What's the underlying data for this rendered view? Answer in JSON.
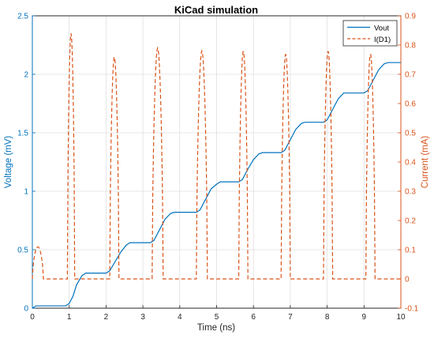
{
  "chart_data": {
    "type": "line",
    "title": "KiCad simulation",
    "xlabel": "Time (ns)",
    "ylabel_left": "Voltage (mV)",
    "ylabel_right": "Current (mA)",
    "xlim": [
      0,
      10
    ],
    "ylim_left": [
      0,
      2.5
    ],
    "ylim_right": [
      -0.1,
      0.9
    ],
    "xticks": [
      "0",
      "1",
      "2",
      "3",
      "4",
      "5",
      "6",
      "7",
      "8",
      "9",
      "10"
    ],
    "yticks_left": [
      "0",
      "0.5",
      "1",
      "1.5",
      "2",
      "2.5"
    ],
    "yticks_right": [
      "-0.1",
      "0",
      "0.1",
      "0.2",
      "0.3",
      "0.4",
      "0.5",
      "0.6",
      "0.7",
      "0.8",
      "0.9"
    ],
    "grid": true,
    "legend_position": "top-right",
    "colors": {
      "vout": "#0072BD",
      "id1": "#D95319"
    },
    "series": [
      {
        "name": "Vout",
        "axis": "left",
        "style": "solid",
        "x": [
          0,
          0.1,
          0.9,
          1.0,
          1.1,
          1.2,
          1.35,
          1.45,
          1.6,
          2.0,
          2.1,
          2.25,
          2.4,
          2.55,
          2.65,
          2.8,
          3.2,
          3.3,
          3.45,
          3.6,
          3.75,
          3.85,
          4.0,
          4.45,
          4.55,
          4.7,
          4.85,
          5.0,
          5.1,
          5.25,
          5.6,
          5.7,
          5.85,
          6.0,
          6.15,
          6.25,
          6.4,
          6.75,
          6.85,
          7.0,
          7.15,
          7.3,
          7.4,
          7.55,
          7.9,
          8.0,
          8.15,
          8.3,
          8.45,
          8.55,
          8.7,
          9.0,
          9.1,
          9.25,
          9.4,
          9.55,
          9.65,
          9.8,
          10.0
        ],
        "y": [
          0,
          0.02,
          0.02,
          0.04,
          0.1,
          0.2,
          0.28,
          0.3,
          0.3,
          0.3,
          0.32,
          0.4,
          0.48,
          0.54,
          0.56,
          0.56,
          0.56,
          0.58,
          0.67,
          0.76,
          0.81,
          0.82,
          0.82,
          0.82,
          0.84,
          0.93,
          1.02,
          1.06,
          1.08,
          1.08,
          1.08,
          1.1,
          1.19,
          1.27,
          1.32,
          1.33,
          1.33,
          1.33,
          1.35,
          1.44,
          1.53,
          1.58,
          1.59,
          1.59,
          1.59,
          1.61,
          1.7,
          1.79,
          1.84,
          1.84,
          1.84,
          1.84,
          1.86,
          1.95,
          2.04,
          2.09,
          2.1,
          2.1,
          2.1
        ]
      },
      {
        "name": "I(D1)",
        "axis": "right",
        "style": "dashed",
        "peaks": [
          {
            "start": 0.0,
            "end": 0.3,
            "peak": 0.11
          },
          {
            "start": 0.95,
            "end": 1.15,
            "peak": 0.84
          },
          {
            "start": 2.1,
            "end": 2.35,
            "peak": 0.76
          },
          {
            "start": 3.25,
            "end": 3.55,
            "peak": 0.79
          },
          {
            "start": 4.45,
            "end": 4.75,
            "peak": 0.78
          },
          {
            "start": 5.6,
            "end": 5.85,
            "peak": 0.78
          },
          {
            "start": 6.75,
            "end": 7.0,
            "peak": 0.77
          },
          {
            "start": 7.9,
            "end": 8.15,
            "peak": 0.78
          },
          {
            "start": 9.05,
            "end": 9.3,
            "peak": 0.77
          }
        ],
        "baseline": 0
      }
    ]
  }
}
